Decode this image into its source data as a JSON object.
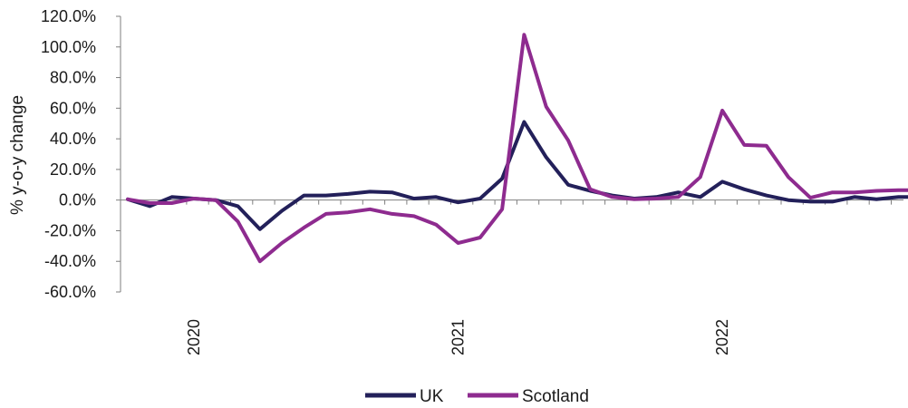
{
  "chart_data": {
    "type": "line",
    "title": "",
    "xlabel": "",
    "ylabel": "% y-o-y change",
    "ylim": [
      -60,
      120
    ],
    "y_ticks": [
      "120.0%",
      "100.0%",
      "80.0%",
      "60.0%",
      "40.0%",
      "20.0%",
      "0.0%",
      "-20.0%",
      "-40.0%",
      "-60.0%"
    ],
    "x_year_labels": [
      "2020",
      "2021",
      "2022"
    ],
    "x": [
      "Oct 2019",
      "Nov 2019",
      "Dec 2019",
      "Jan 2020",
      "Feb 2020",
      "Mar 2020",
      "Apr 2020",
      "May 2020",
      "Jun 2020",
      "Jul 2020",
      "Aug 2020",
      "Sep 2020",
      "Oct 2020",
      "Nov 2020",
      "Dec 2020",
      "Jan 2021",
      "Feb 2021",
      "Mar 2021",
      "Apr 2021",
      "May 2021",
      "Jun 2021",
      "Jul 2021",
      "Aug 2021",
      "Sep 2021",
      "Oct 2021",
      "Nov 2021",
      "Dec 2021",
      "Jan 2022",
      "Feb 2022",
      "Mar 2022",
      "Apr 2022",
      "May 2022",
      "Jun 2022",
      "Jul 2022",
      "Aug 2022",
      "Sep 2022",
      "Oct 2022"
    ],
    "grid": false,
    "legend_position": "bottom",
    "series": [
      {
        "name": "UK",
        "color": "#23205a",
        "values": [
          0.5,
          -4,
          2,
          1,
          0,
          -4,
          -19,
          -7,
          3,
          3,
          4,
          5.5,
          5,
          1,
          2,
          -1.5,
          1,
          14,
          51,
          28,
          10,
          6,
          3,
          1,
          2,
          5,
          2,
          12,
          7,
          3,
          0,
          -1,
          -1,
          2,
          0.5,
          2,
          2
        ]
      },
      {
        "name": "Scotland",
        "color": "#8e2b8f",
        "values": [
          0.5,
          -2,
          -2,
          1,
          0,
          -14,
          -40,
          -28,
          -18,
          -9,
          -8,
          -6,
          -9,
          -10.5,
          -16,
          -28,
          -24.5,
          -6,
          108,
          61,
          39,
          7,
          2,
          0.5,
          1,
          2,
          15,
          58.5,
          36,
          35.5,
          15,
          1.5,
          5,
          5,
          6,
          6.5,
          6.5
        ]
      }
    ]
  }
}
